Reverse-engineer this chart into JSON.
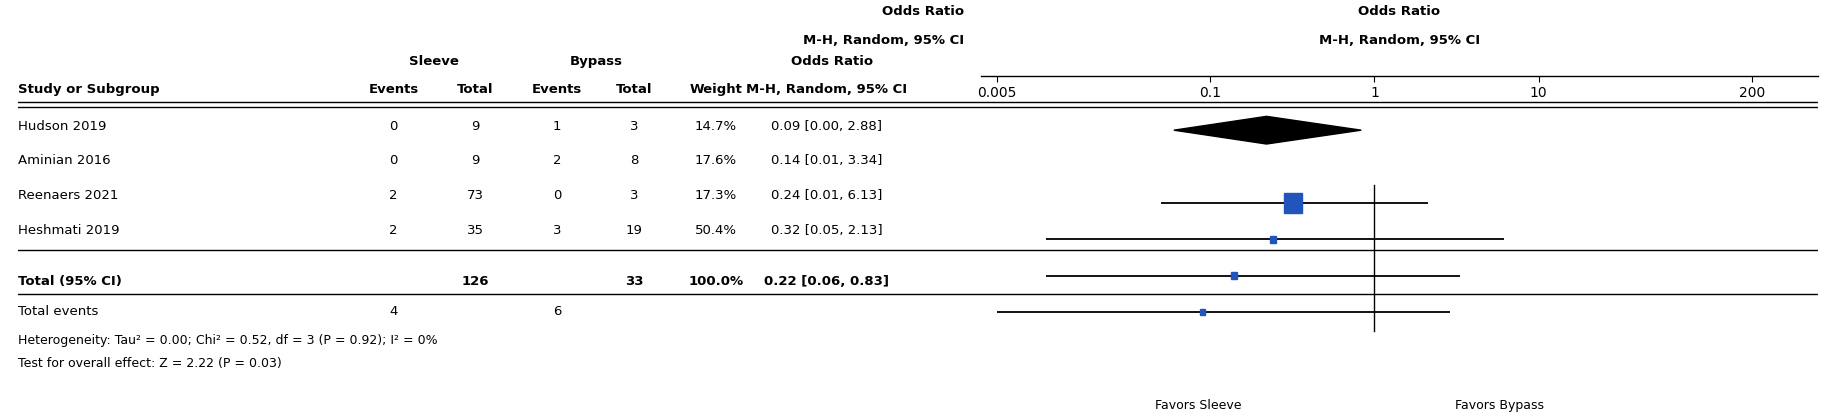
{
  "studies": [
    {
      "name": "Hudson 2019",
      "sleeve_events": 0,
      "sleeve_total": 9,
      "bypass_events": 1,
      "bypass_total": 3,
      "weight": "14.7%",
      "or": 0.09,
      "ci_low": 0.005,
      "ci_high": 2.88,
      "or_str": "0.09 [0.00, 2.88]"
    },
    {
      "name": "Aminian 2016",
      "sleeve_events": 0,
      "sleeve_total": 9,
      "bypass_events": 2,
      "bypass_total": 8,
      "weight": "17.6%",
      "or": 0.14,
      "ci_low": 0.01,
      "ci_high": 3.34,
      "or_str": "0.14 [0.01, 3.34]"
    },
    {
      "name": "Reenaers 2021",
      "sleeve_events": 2,
      "sleeve_total": 73,
      "bypass_events": 0,
      "bypass_total": 3,
      "weight": "17.3%",
      "or": 0.24,
      "ci_low": 0.01,
      "ci_high": 6.13,
      "or_str": "0.24 [0.01, 6.13]"
    },
    {
      "name": "Heshmati 2019",
      "sleeve_events": 2,
      "sleeve_total": 35,
      "bypass_events": 3,
      "bypass_total": 19,
      "weight": "50.4%",
      "or": 0.32,
      "ci_low": 0.05,
      "ci_high": 2.13,
      "or_str": "0.32 [0.05, 2.13]"
    }
  ],
  "total": {
    "sleeve_total": 126,
    "bypass_total": 33,
    "sleeve_events": 4,
    "bypass_events": 6,
    "weight": "100.0%",
    "or": 0.22,
    "ci_low": 0.06,
    "ci_high": 0.83,
    "or_str": "0.22 [0.06, 0.83]"
  },
  "heterogeneity_line": "Heterogeneity: Tau² = 0.00; Chi² = 0.52, df = 3 (P = 0.92); I² = 0%",
  "overall_effect_line": "Test for overall effect: Z = 2.22 (P = 0.03)",
  "total_events_label": "Total events",
  "favors_left": "Favors Sleeve",
  "favors_right": "Favors Bypass",
  "x_ticks": [
    0.005,
    0.1,
    1,
    10,
    200
  ],
  "x_tick_labels": [
    "0.005",
    "0.1",
    "1",
    "10",
    "200"
  ],
  "x_min": 0.004,
  "x_max": 500,
  "square_color": "#2255bb",
  "font_size": 9.5
}
